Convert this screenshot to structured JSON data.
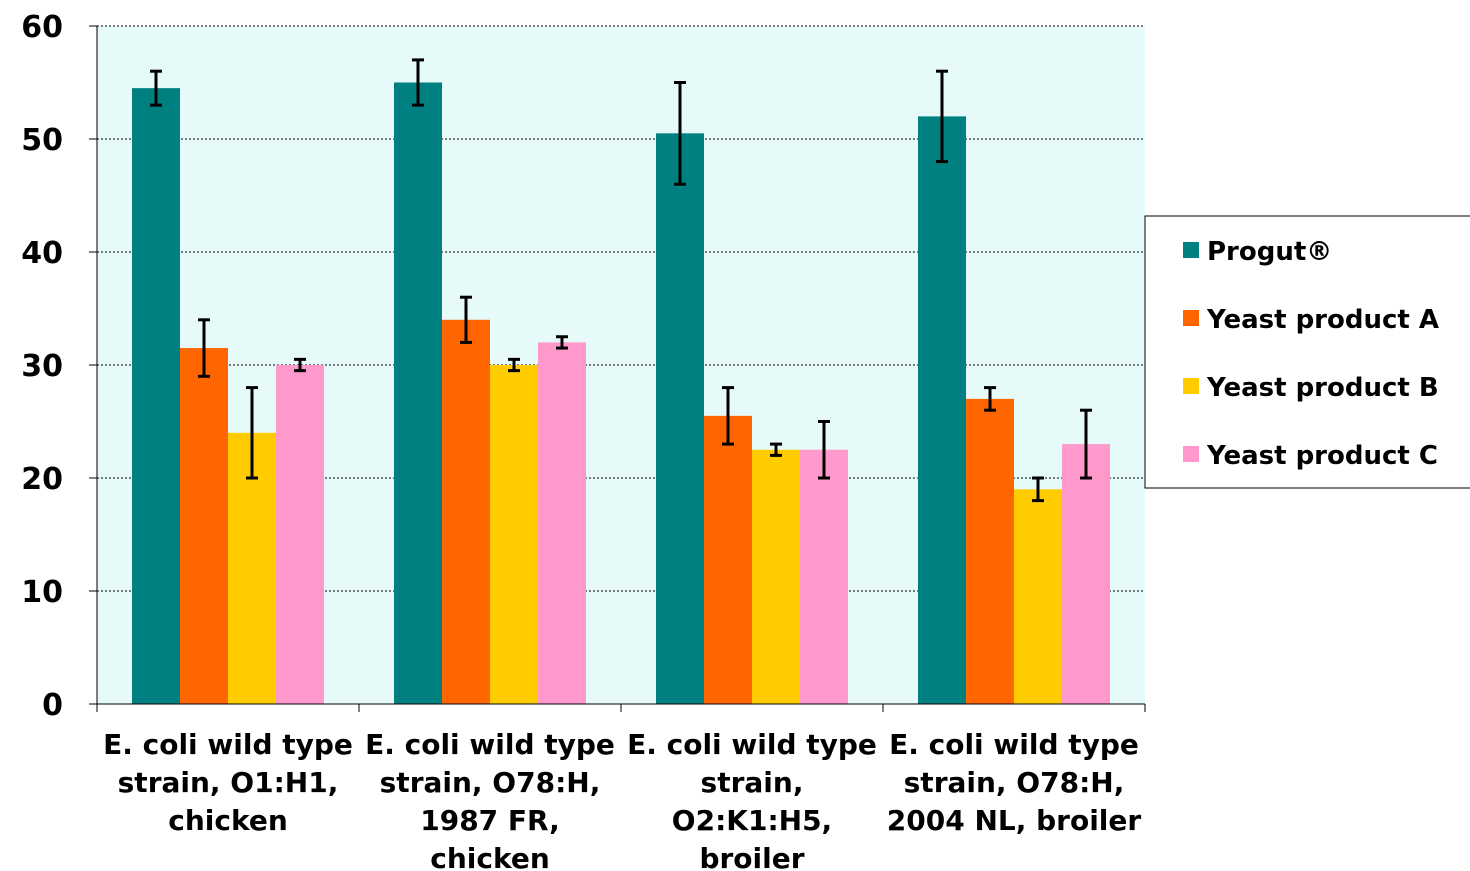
{
  "chart_data": {
    "type": "bar",
    "title": "",
    "xlabel": "",
    "ylabel": "",
    "ylim": [
      0,
      60
    ],
    "yticks": [
      0,
      10,
      20,
      30,
      40,
      50,
      60
    ],
    "grid": "horizontal dashed",
    "plot_background": "#E6FAFA",
    "legend_position": "right",
    "categories": [
      [
        "E. coli wild type",
        "strain, O1:H1,",
        "chicken"
      ],
      [
        "E. coli wild type",
        "strain, O78:H,",
        "1987 FR,",
        "chicken"
      ],
      [
        "E. coli wild type",
        "strain,",
        "O2:K1:H5,",
        "broiler"
      ],
      [
        "E. coli wild type",
        "strain, O78:H,",
        "2004 NL, broiler"
      ]
    ],
    "series": [
      {
        "name": "Progut®",
        "color": "#008080",
        "values": [
          54.5,
          55,
          50.5,
          52
        ],
        "error_low": [
          53,
          53,
          46,
          48
        ],
        "error_high": [
          56,
          57,
          55,
          56
        ]
      },
      {
        "name": "Yeast product A",
        "color": "#FF6600",
        "values": [
          31.5,
          34,
          25.5,
          27
        ],
        "error_low": [
          29,
          32,
          23,
          26
        ],
        "error_high": [
          34,
          36,
          28,
          28
        ]
      },
      {
        "name": "Yeast product B",
        "color": "#FFCC00",
        "values": [
          24,
          30,
          22.5,
          19
        ],
        "error_low": [
          20,
          29.5,
          22,
          18
        ],
        "error_high": [
          28,
          30.5,
          23,
          20
        ]
      },
      {
        "name": "Yeast product C",
        "color": "#FF99CC",
        "values": [
          30,
          32,
          22.5,
          23
        ],
        "error_low": [
          29.5,
          31.5,
          20,
          20
        ],
        "error_high": [
          30.5,
          32.5,
          25,
          26
        ]
      }
    ]
  }
}
